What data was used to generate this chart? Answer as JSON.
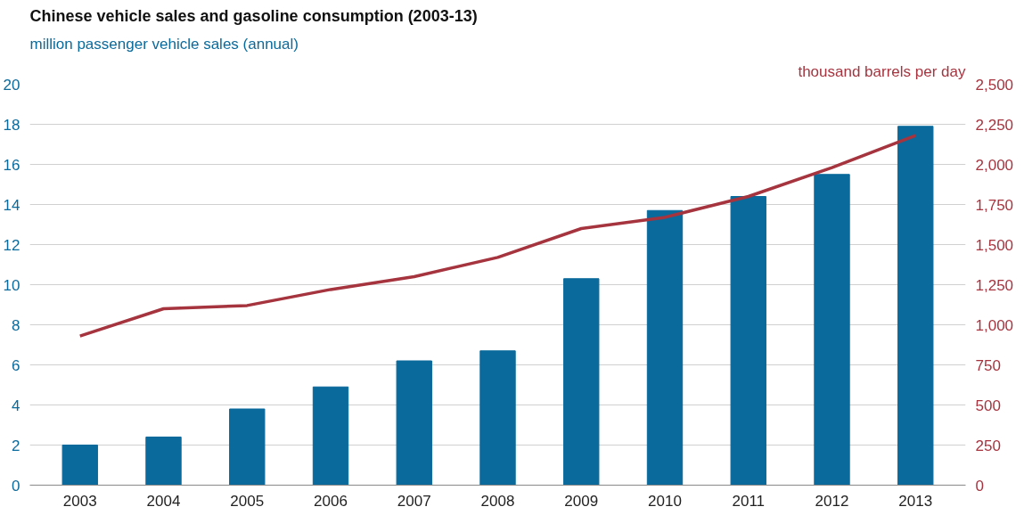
{
  "chart_data": {
    "type": "bar",
    "title": "Chinese vehicle sales and gasoline consumption (2003-13)",
    "ylabel": "million passenger vehicle  sales (annual)",
    "y2label": "thousand barrels per day",
    "categories": [
      "2003",
      "2004",
      "2005",
      "2006",
      "2007",
      "2008",
      "2009",
      "2010",
      "2011",
      "2012",
      "2013"
    ],
    "series": [
      {
        "color": "#0b6a9c",
        "values": [
          2.0,
          2.4,
          3.8,
          4.9,
          6.2,
          6.7,
          10.3,
          13.7,
          14.4,
          15.5,
          17.9
        ]
      },
      {
        "type": "line",
        "axis": "y2",
        "color": "#a5343f",
        "values": [
          930,
          1100,
          1120,
          1220,
          1300,
          1420,
          1600,
          1670,
          1800,
          1980,
          2180
        ]
      }
    ],
    "ylim": [
      0,
      20
    ],
    "yticks": [
      0,
      2,
      4,
      6,
      8,
      10,
      12,
      14,
      16,
      18,
      20
    ],
    "y2lim": [
      0,
      2500
    ],
    "y2ticks": [
      0,
      250,
      500,
      750,
      {
        "value": 1000,
        "label": "1,000"
      },
      {
        "value": 1250,
        "label": "1,250"
      },
      {
        "value": 1500,
        "label": "1,500"
      },
      {
        "value": 1750,
        "label": "1,750"
      },
      {
        "value": 2000,
        "label": "2,000"
      },
      {
        "value": 2250,
        "label": "2,250"
      },
      {
        "value": 2500,
        "label": "2,500"
      }
    ],
    "grid": "y"
  }
}
